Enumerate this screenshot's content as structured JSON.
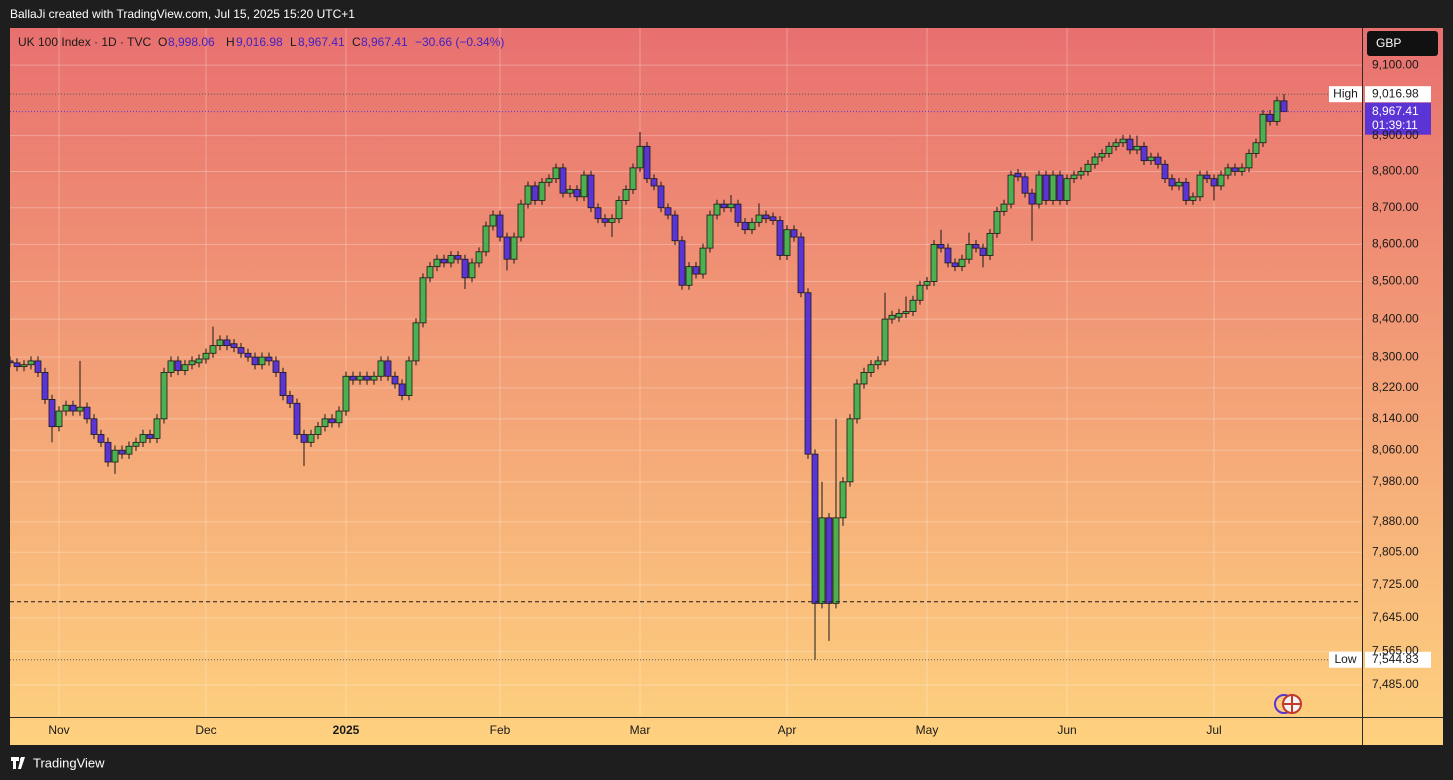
{
  "header": {
    "author_line": "BallaJi created with TradingView.com, Jul 15, 2025 15:20 UTC+1"
  },
  "footer": {
    "brand": "TradingView"
  },
  "chart_data": {
    "type": "candlestick",
    "symbol": "UK 100 Index · 1D · TVC",
    "currency": "GBP",
    "legend_values": [
      {
        "name": "O",
        "value": 8998.06,
        "label": "8,998.06"
      },
      {
        "name": "H",
        "value": 9016.98,
        "label": "9,016.98"
      },
      {
        "name": "L",
        "value": 8967.41,
        "label": "8,967.41"
      },
      {
        "name": "C",
        "value": 8967.41,
        "label": "8,967.41"
      }
    ],
    "change_label": "−30.66 (−0.34%)",
    "scale": "log",
    "grid": true,
    "up_color": "#4caf50",
    "down_color": "#5b34d6",
    "ylim": [
      7410,
      9207
    ],
    "yticks": [
      {
        "value": 9100,
        "label": "9,100.00"
      },
      {
        "value": 8900,
        "label": "8,900.00"
      },
      {
        "value": 8800,
        "label": "8,800.00"
      },
      {
        "value": 8700,
        "label": "8,700.00"
      },
      {
        "value": 8600,
        "label": "8,600.00"
      },
      {
        "value": 8500,
        "label": "8,500.00"
      },
      {
        "value": 8400,
        "label": "8,400.00"
      },
      {
        "value": 8300,
        "label": "8,300.00"
      },
      {
        "value": 8220,
        "label": "8,220.00"
      },
      {
        "value": 8140,
        "label": "8,140.00"
      },
      {
        "value": 8060,
        "label": "8,060.00"
      },
      {
        "value": 7980,
        "label": "7,980.00"
      },
      {
        "value": 7880,
        "label": "7,880.00"
      },
      {
        "value": 7805,
        "label": "7,805.00"
      },
      {
        "value": 7725,
        "label": "7,725.00"
      },
      {
        "value": 7645,
        "label": "7,645.00"
      },
      {
        "value": 7565,
        "label": "7,565.00"
      },
      {
        "value": 7485,
        "label": "7,485.00"
      }
    ],
    "high": {
      "label": "High",
      "value": 9016.98,
      "value_label": "9,016.98"
    },
    "low": {
      "label": "Low",
      "value": 7544.83,
      "value_label": "7,544.83"
    },
    "last_price": {
      "value": 8967.41,
      "label": "8,967.41",
      "countdown": "01:39:11"
    },
    "hlines": [
      7684
    ],
    "categories": [
      null,
      null,
      null,
      null,
      null,
      null,
      null,
      "Nov",
      null,
      null,
      null,
      null,
      null,
      null,
      null,
      null,
      null,
      null,
      null,
      null,
      null,
      null,
      null,
      null,
      null,
      null,
      null,
      null,
      "Dec",
      null,
      null,
      null,
      null,
      null,
      null,
      null,
      null,
      null,
      null,
      null,
      null,
      null,
      null,
      null,
      null,
      null,
      null,
      null,
      "2025",
      null,
      null,
      null,
      null,
      null,
      null,
      null,
      null,
      null,
      null,
      null,
      null,
      null,
      null,
      null,
      null,
      null,
      null,
      null,
      null,
      null,
      "Feb",
      null,
      null,
      null,
      null,
      null,
      null,
      null,
      null,
      null,
      null,
      null,
      null,
      null,
      null,
      null,
      null,
      null,
      null,
      null,
      "Mar",
      null,
      null,
      null,
      null,
      null,
      null,
      null,
      null,
      null,
      null,
      null,
      null,
      null,
      null,
      null,
      null,
      null,
      null,
      null,
      null,
      "Apr",
      null,
      null,
      null,
      null,
      null,
      null,
      null,
      null,
      null,
      null,
      null,
      null,
      null,
      null,
      null,
      null,
      null,
      null,
      null,
      "May",
      null,
      null,
      null,
      null,
      null,
      null,
      null,
      null,
      null,
      null,
      null,
      null,
      null,
      null,
      null,
      null,
      null,
      null,
      null,
      "Jun",
      null,
      null,
      null,
      null,
      null,
      null,
      null,
      null,
      null,
      null,
      null,
      null,
      null,
      null,
      null,
      null,
      null,
      null,
      null,
      null,
      "Jul",
      null,
      null,
      null,
      null,
      null,
      null,
      null,
      null,
      null,
      null
    ],
    "series": {
      "open": [
        8290,
        8285,
        8275,
        8280,
        8290,
        8260,
        8190,
        8120,
        8160,
        8175,
        8160,
        8170,
        8140,
        8100,
        8080,
        8030,
        8060,
        8050,
        8070,
        8080,
        8100,
        8090,
        8140,
        8260,
        8290,
        8265,
        8280,
        8285,
        8295,
        8310,
        8330,
        8345,
        8335,
        8325,
        8310,
        8300,
        8280,
        8300,
        8290,
        8260,
        8200,
        8180,
        8100,
        8080,
        8100,
        8120,
        8140,
        8130,
        8160,
        8250,
        8240,
        8250,
        8240,
        8250,
        8290,
        8250,
        8230,
        8200,
        8290,
        8390,
        8510,
        8540,
        8560,
        8550,
        8570,
        8560,
        8510,
        8550,
        8580,
        8650,
        8680,
        8620,
        8560,
        8620,
        8710,
        8760,
        8720,
        8770,
        8780,
        8810,
        8740,
        8750,
        8730,
        8790,
        8700,
        8670,
        8660,
        8670,
        8720,
        8750,
        8810,
        8870,
        8780,
        8760,
        8700,
        8680,
        8610,
        8490,
        8540,
        8520,
        8590,
        8680,
        8710,
        8700,
        8710,
        8660,
        8640,
        8660,
        8680,
        8675,
        8665,
        8570,
        8640,
        8620,
        8470,
        8050,
        7680,
        7890,
        7680,
        7890,
        7980,
        8140,
        8230,
        8260,
        8280,
        8290,
        8400,
        8405,
        8415,
        8420,
        8450,
        8490,
        8500,
        8600,
        8590,
        8550,
        8540,
        8560,
        8600,
        8590,
        8570,
        8630,
        8690,
        8710,
        8795,
        8785,
        8740,
        8710,
        8790,
        8720,
        8790,
        8720,
        8780,
        8790,
        8800,
        8820,
        8840,
        8850,
        8870,
        8880,
        8890,
        8860,
        8870,
        8830,
        8840,
        8820,
        8780,
        8760,
        8770,
        8720,
        8730,
        8790,
        8780,
        8760,
        8790,
        8810,
        8800,
        8810,
        8850,
        8880,
        8960,
        8940,
        8998.06
      ],
      "high": [
        8302,
        8297,
        8292,
        8302,
        8302,
        8272,
        8202,
        8172,
        8187,
        8187,
        8290,
        8182,
        8152,
        8112,
        8092,
        8072,
        8072,
        8082,
        8092,
        8112,
        8112,
        8152,
        8272,
        8302,
        8302,
        8292,
        8302,
        8307,
        8322,
        8380,
        8357,
        8357,
        8347,
        8337,
        8322,
        8312,
        8312,
        8312,
        8302,
        8272,
        8212,
        8192,
        8112,
        8112,
        8132,
        8152,
        8152,
        8172,
        8262,
        8262,
        8262,
        8262,
        8262,
        8302,
        8302,
        8262,
        8242,
        8302,
        8402,
        8522,
        8552,
        8572,
        8572,
        8582,
        8582,
        8572,
        8562,
        8592,
        8662,
        8692,
        8692,
        8632,
        8632,
        8722,
        8772,
        8772,
        8782,
        8792,
        8822,
        8822,
        8762,
        8762,
        8802,
        8802,
        8712,
        8682,
        8682,
        8732,
        8762,
        8822,
        8910,
        8882,
        8792,
        8772,
        8712,
        8692,
        8622,
        8552,
        8552,
        8602,
        8692,
        8722,
        8722,
        8735,
        8722,
        8672,
        8672,
        8712,
        8692,
        8687,
        8677,
        8652,
        8652,
        8632,
        8482,
        8062,
        7980,
        7902,
        8140,
        7992,
        8152,
        8242,
        8272,
        8292,
        8302,
        8470,
        8422,
        8427,
        8460,
        8462,
        8502,
        8512,
        8612,
        8640,
        8602,
        8562,
        8572,
        8632,
        8612,
        8602,
        8642,
        8702,
        8722,
        8802,
        8807,
        8797,
        8752,
        8802,
        8802,
        8802,
        8802,
        8792,
        8802,
        8812,
        8832,
        8852,
        8862,
        8882,
        8892,
        8902,
        8902,
        8900,
        8882,
        8852,
        8852,
        8832,
        8792,
        8782,
        8782,
        8742,
        8802,
        8802,
        8792,
        8802,
        8822,
        8822,
        8822,
        8862,
        8892,
        8972,
        8972,
        9010,
        9016.98
      ],
      "low": [
        8273,
        8263,
        8263,
        8268,
        8248,
        8178,
        8080,
        8108,
        8148,
        8148,
        8148,
        8128,
        8088,
        8068,
        8018,
        8000,
        8038,
        8038,
        8058,
        8068,
        8078,
        8078,
        8128,
        8248,
        8253,
        8253,
        8268,
        8273,
        8283,
        8298,
        8318,
        8318,
        8313,
        8298,
        8288,
        8268,
        8268,
        8278,
        8248,
        8188,
        8168,
        8088,
        8020,
        8068,
        8088,
        8108,
        8118,
        8118,
        8148,
        8228,
        8228,
        8228,
        8228,
        8238,
        8238,
        8218,
        8188,
        8188,
        8278,
        8378,
        8498,
        8528,
        8538,
        8538,
        8548,
        8480,
        8498,
        8538,
        8568,
        8638,
        8608,
        8530,
        8548,
        8608,
        8698,
        8708,
        8708,
        8758,
        8768,
        8728,
        8728,
        8718,
        8718,
        8688,
        8658,
        8648,
        8620,
        8658,
        8708,
        8738,
        8798,
        8768,
        8748,
        8688,
        8668,
        8598,
        8478,
        8478,
        8508,
        8508,
        8578,
        8668,
        8688,
        8688,
        8648,
        8628,
        8628,
        8648,
        8658,
        8653,
        8558,
        8558,
        8608,
        8458,
        8038,
        7544.83,
        7668,
        7590,
        7668,
        7870,
        7968,
        8128,
        8218,
        8248,
        8268,
        8278,
        8388,
        8393,
        8403,
        8408,
        8438,
        8478,
        8488,
        8578,
        8538,
        8528,
        8528,
        8548,
        8578,
        8538,
        8558,
        8618,
        8678,
        8698,
        8773,
        8728,
        8610,
        8698,
        8708,
        8708,
        8708,
        8708,
        8768,
        8778,
        8788,
        8808,
        8828,
        8838,
        8858,
        8868,
        8848,
        8848,
        8818,
        8818,
        8808,
        8768,
        8748,
        8748,
        8708,
        8708,
        8718,
        8768,
        8720,
        8748,
        8778,
        8788,
        8788,
        8798,
        8838,
        8868,
        8928,
        8928,
        8967.41
      ],
      "close": [
        8285,
        8275,
        8280,
        8290,
        8260,
        8190,
        8120,
        8160,
        8175,
        8160,
        8170,
        8140,
        8100,
        8080,
        8030,
        8060,
        8050,
        8070,
        8080,
        8100,
        8090,
        8140,
        8260,
        8290,
        8265,
        8280,
        8290,
        8295,
        8310,
        8330,
        8345,
        8330,
        8325,
        8310,
        8300,
        8280,
        8300,
        8290,
        8260,
        8200,
        8180,
        8100,
        8080,
        8100,
        8120,
        8140,
        8130,
        8160,
        8250,
        8240,
        8250,
        8240,
        8250,
        8290,
        8250,
        8230,
        8200,
        8290,
        8390,
        8510,
        8540,
        8560,
        8550,
        8570,
        8560,
        8510,
        8550,
        8580,
        8650,
        8680,
        8620,
        8560,
        8620,
        8710,
        8760,
        8720,
        8770,
        8780,
        8810,
        8740,
        8750,
        8730,
        8790,
        8700,
        8670,
        8660,
        8670,
        8720,
        8750,
        8810,
        8870,
        8780,
        8760,
        8700,
        8680,
        8610,
        8490,
        8540,
        8520,
        8590,
        8680,
        8710,
        8700,
        8710,
        8660,
        8640,
        8660,
        8680,
        8670,
        8665,
        8570,
        8640,
        8620,
        8470,
        8050,
        7680,
        7890,
        7680,
        7890,
        7980,
        8140,
        8230,
        8260,
        8280,
        8290,
        8400,
        8410,
        8415,
        8420,
        8450,
        8490,
        8500,
        8600,
        8590,
        8550,
        8540,
        8560,
        8600,
        8590,
        8570,
        8630,
        8690,
        8710,
        8790,
        8785,
        8740,
        8710,
        8790,
        8720,
        8790,
        8720,
        8780,
        8790,
        8800,
        8820,
        8840,
        8850,
        8870,
        8880,
        8890,
        8860,
        8870,
        8830,
        8840,
        8820,
        8780,
        8760,
        8770,
        8720,
        8730,
        8790,
        8780,
        8760,
        8790,
        8810,
        8800,
        8810,
        8850,
        8880,
        8960,
        8940,
        8998.06,
        8967.41
      ]
    }
  }
}
